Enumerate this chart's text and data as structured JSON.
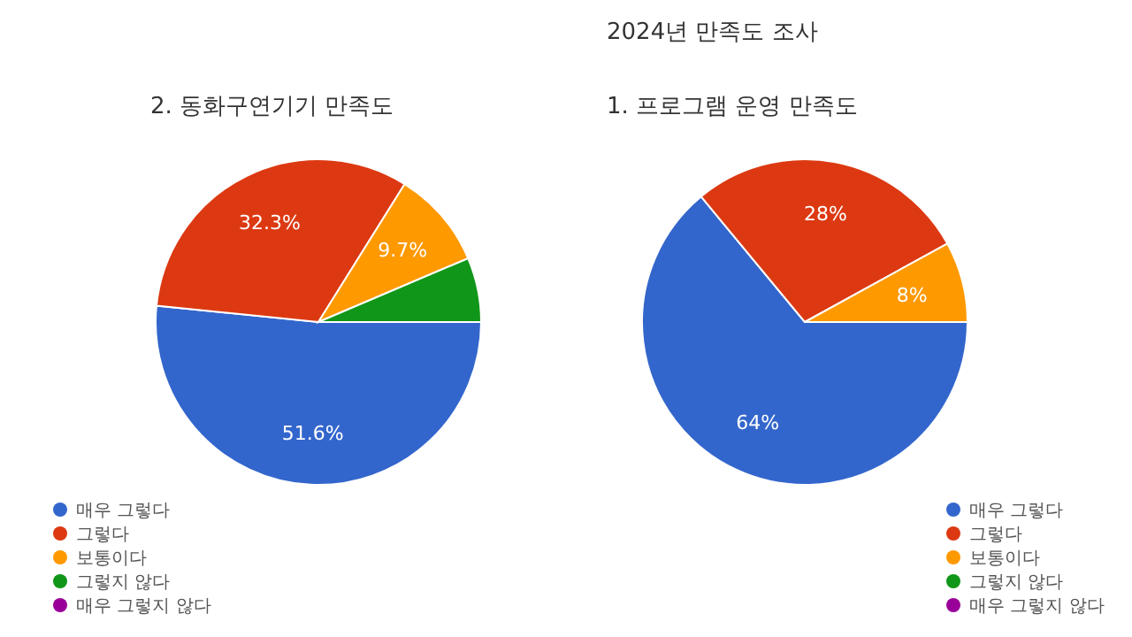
{
  "chart_data": [
    {
      "type": "pie",
      "title": "2. 동화구연기기 만족도",
      "categories": [
        "매우 그렇다",
        "그렇다",
        "보통이다",
        "그렇지 않다",
        "매우 그렇지 않다"
      ],
      "values": [
        51.6,
        32.3,
        9.7,
        6.4,
        0
      ],
      "colors": [
        "#3366cc",
        "#dc3912",
        "#ff9900",
        "#109618",
        "#990099"
      ],
      "value_labels": [
        "51.6%",
        "32.3%",
        "9.7%",
        null,
        null
      ],
      "legend": "bottom left"
    },
    {
      "type": "pie",
      "title": "1. 프로그램 운영 만족도",
      "subtitle": "2024년 만족도 조사",
      "categories": [
        "매우 그렇다",
        "그렇다",
        "보통이다",
        "그렇지 않다",
        "매우 그렇지 않다"
      ],
      "values": [
        64,
        28,
        8,
        0,
        0
      ],
      "colors": [
        "#3366cc",
        "#dc3912",
        "#ff9900",
        "#109618",
        "#990099"
      ],
      "value_labels": [
        "64%",
        "28%",
        "8%",
        null,
        null
      ],
      "legend": "bottom right"
    }
  ]
}
